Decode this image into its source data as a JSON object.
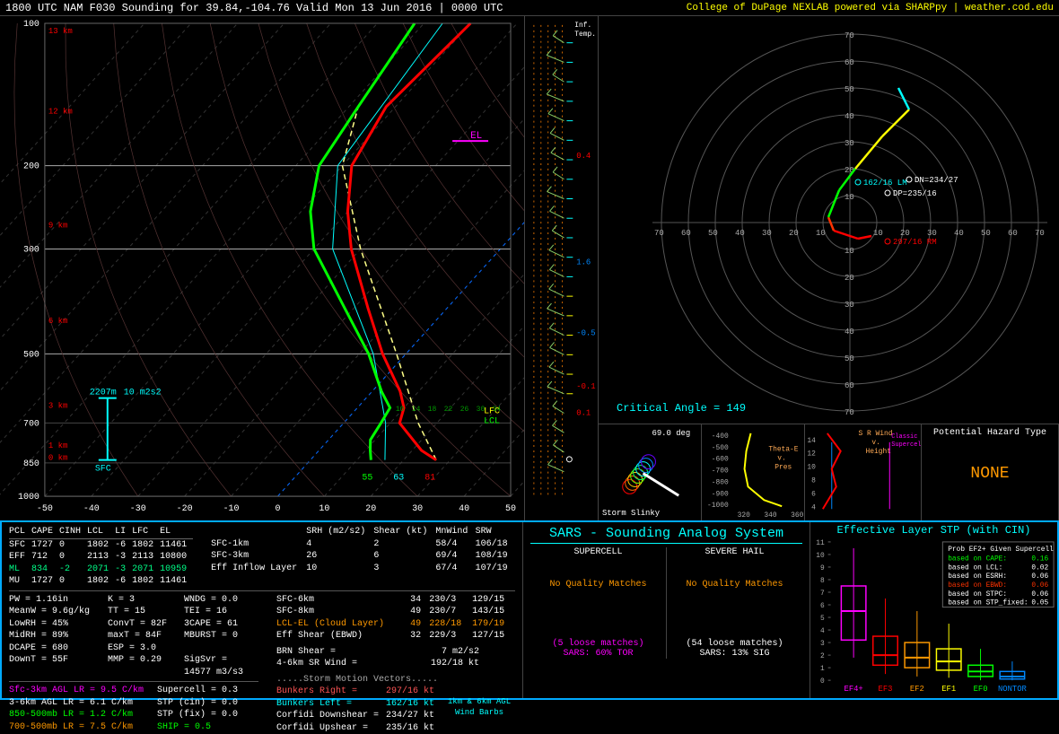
{
  "title": "1800 UTC NAM F030 Sounding for 39.84,-104.76 Valid  Mon 13 Jun 2016 | 0000 UTC",
  "credit": "College of DuPage NEXLAB powered via SHARPpy | weather.cod.edu",
  "skewt": {
    "pressure_ticks": [
      100,
      200,
      300,
      500,
      700,
      850,
      1000
    ],
    "temp_ticks": [
      -50,
      -40,
      -30,
      -20,
      -10,
      0,
      10,
      20,
      30,
      40,
      50
    ],
    "height_labels": [
      {
        "km": "13 km",
        "p": 105,
        "color": "#ff0000"
      },
      {
        "km": "12 km",
        "p": 155,
        "color": "#ff0000"
      },
      {
        "km": "9 km",
        "p": 270,
        "color": "#ff0000"
      },
      {
        "km": "6 km",
        "p": 430,
        "color": "#ff0000"
      },
      {
        "km": "3 km",
        "p": 650,
        "color": "#ff0000"
      },
      {
        "km": "1 km",
        "p": 790,
        "color": "#ff0000"
      },
      {
        "km": "0 km",
        "p": 838,
        "color": "#ff0000"
      }
    ],
    "sfc_label": "SFC",
    "eff_top": "2207m",
    "eff_sh": "10 m2s2",
    "el_label": "EL",
    "lfc_label": "LFC",
    "lcl_label": "LCL",
    "lcl_fl_label": "LCL-FL (Cloud Layer)",
    "temp_profile": [
      {
        "p": 838,
        "t": 27
      },
      {
        "p": 800,
        "t": 22
      },
      {
        "p": 700,
        "t": 12
      },
      {
        "p": 650,
        "t": 10
      },
      {
        "p": 600,
        "t": 6
      },
      {
        "p": 500,
        "t": -5
      },
      {
        "p": 400,
        "t": -17
      },
      {
        "p": 300,
        "t": -32
      },
      {
        "p": 250,
        "t": -40
      },
      {
        "p": 200,
        "t": -48
      },
      {
        "p": 150,
        "t": -52
      },
      {
        "p": 100,
        "t": -50
      }
    ],
    "dew_profile": [
      {
        "p": 838,
        "t": 13
      },
      {
        "p": 800,
        "t": 11
      },
      {
        "p": 760,
        "t": 9
      },
      {
        "p": 700,
        "t": 8
      },
      {
        "p": 650,
        "t": 7
      },
      {
        "p": 600,
        "t": 2
      },
      {
        "p": 500,
        "t": -8
      },
      {
        "p": 400,
        "t": -22
      },
      {
        "p": 300,
        "t": -40
      },
      {
        "p": 250,
        "t": -48
      },
      {
        "p": 200,
        "t": -55
      },
      {
        "p": 150,
        "t": -58
      },
      {
        "p": 100,
        "t": -62
      }
    ],
    "wetbulb_profile": [
      {
        "p": 838,
        "t": 16
      },
      {
        "p": 700,
        "t": 9
      },
      {
        "p": 500,
        "t": -7
      },
      {
        "p": 300,
        "t": -36
      },
      {
        "p": 200,
        "t": -51
      },
      {
        "p": 100,
        "t": -56
      }
    ],
    "parcel_profile": [
      {
        "p": 838,
        "t": 27
      },
      {
        "p": 700,
        "t": 16
      },
      {
        "p": 500,
        "t": -2
      },
      {
        "p": 300,
        "t": -30
      },
      {
        "p": 200,
        "t": -50
      },
      {
        "p": 150,
        "t": -58
      }
    ],
    "sfc_markers": [
      {
        "v": "55",
        "c": "#0f0"
      },
      {
        "v": "63",
        "c": "#0ff"
      },
      {
        "v": "81",
        "c": "#f00"
      }
    ],
    "inflow_markers": [
      "10",
      "14",
      "18",
      "22",
      "26",
      "30",
      "34"
    ]
  },
  "wind_panel": {
    "inf_temp_label": "Inf.\nTemp."
  },
  "hodograph": {
    "rings_kt": [
      10,
      20,
      30,
      40,
      50,
      60,
      70
    ],
    "line": [
      {
        "u": 8,
        "v": -5,
        "c": "#ff0000"
      },
      {
        "u": 3,
        "v": -6,
        "c": "#ff0000"
      },
      {
        "u": -6,
        "v": -3,
        "c": "#ff3300"
      },
      {
        "u": -8,
        "v": 2,
        "c": "#00ff00"
      },
      {
        "u": -4,
        "v": 12,
        "c": "#00ff00"
      },
      {
        "u": 2,
        "v": 20,
        "c": "#ffff00"
      },
      {
        "u": 12,
        "v": 32,
        "c": "#ffff00"
      },
      {
        "u": 22,
        "v": 42,
        "c": "#00ffff"
      },
      {
        "u": 18,
        "v": 50,
        "c": "#00ffff"
      }
    ],
    "markers": {
      "lm": {
        "txt": "162/16 LM",
        "u": 3,
        "v": 15,
        "c": "#00ffff"
      },
      "dn": {
        "txt": "DN=234/27",
        "u": 22,
        "v": 16,
        "c": "#ffffff"
      },
      "dp": {
        "txt": "DP=235/16",
        "u": 14,
        "v": 11,
        "c": "#ffffff"
      },
      "rm": {
        "txt": "297/16 RM",
        "u": 14,
        "v": -7,
        "c": "#ff0000"
      }
    },
    "crit_angle": "Critical Angle = 149"
  },
  "insets": {
    "slinky": {
      "label": "Storm Slinky",
      "angle": "69.0 deg"
    },
    "thetae": {
      "label": "Theta-E\nv.\nPres",
      "yticks": [
        "-400",
        "-500",
        "-600",
        "-700",
        "-800",
        "-900",
        "-1000"
      ],
      "xticks": [
        "320",
        "340",
        "360"
      ]
    },
    "srwind": {
      "label": "S R Wind\nv.\nHeight",
      "ticks": [
        "4",
        "6",
        "8",
        "10",
        "12",
        "14"
      ],
      "classic": "Classic\nSupercell"
    },
    "hazard": {
      "label": "Potential Hazard Type",
      "value": "NONE"
    }
  },
  "parcel_table": {
    "header": [
      "PCL",
      "CAPE",
      "CINH",
      "LCL",
      "LI",
      "LFC",
      "EL"
    ],
    "rows": [
      {
        "c": "#ffffff",
        "vals": [
          "SFC",
          "1727",
          "0",
          "1802",
          "-6",
          "1802",
          "11461"
        ]
      },
      {
        "c": "#ffffff",
        "vals": [
          "EFF",
          "712",
          "0",
          "2113",
          "-3",
          "2113",
          "10800"
        ]
      },
      {
        "c": "#00ff88",
        "vals": [
          "ML",
          "834",
          "-2",
          "2071",
          "-3",
          "2071",
          "10959"
        ]
      },
      {
        "c": "#ffffff",
        "vals": [
          "MU",
          "1727",
          "0",
          "1802",
          "-6",
          "1802",
          "11461"
        ]
      }
    ]
  },
  "thermo": [
    {
      "l": "PW = 1.16in",
      "c": "#fff"
    },
    {
      "l": "K = 3",
      "c": "#fff"
    },
    {
      "l": "WNDG = 0.0",
      "c": "#fff"
    },
    {
      "l": "MeanW = 9.6g/kg",
      "c": "#fff"
    },
    {
      "l": "TT = 15",
      "c": "#fff"
    },
    {
      "l": "TEI = 16",
      "c": "#fff"
    },
    {
      "l": "LowRH = 45%",
      "c": "#fff"
    },
    {
      "l": "ConvT = 82F",
      "c": "#fff"
    },
    {
      "l": "3CAPE = 61",
      "c": "#fff"
    },
    {
      "l": "MidRH = 89%",
      "c": "#fff"
    },
    {
      "l": "maxT = 84F",
      "c": "#fff"
    },
    {
      "l": "MBURST = 0",
      "c": "#fff"
    },
    {
      "l": "DCAPE = 680",
      "c": "#fff"
    },
    {
      "l": "ESP = 3.0",
      "c": "#fff"
    },
    {
      "l": "",
      "c": "#fff"
    },
    {
      "l": "DownT = 55F",
      "c": "#fff"
    },
    {
      "l": "MMP = 0.29",
      "c": "#fff"
    },
    {
      "l": "SigSvr = 14577 m3/s3",
      "c": "#fff"
    }
  ],
  "lapse": [
    {
      "l": "Sfc-3km AGL LR = 9.5 C/km",
      "c": "#f0f"
    },
    {
      "l": "Supercell = 0.3",
      "c": "#fff"
    },
    {
      "l": "3-6km AGL LR = 6.1 C/km",
      "c": "#fff"
    },
    {
      "l": "STP (cin) = 0.0",
      "c": "#fff"
    },
    {
      "l": "850-500mb LR = 1.2 C/km",
      "c": "#0f0"
    },
    {
      "l": "STP (fix) = 0.0",
      "c": "#fff"
    },
    {
      "l": "700-500mb LR = 7.5 C/km",
      "c": "#f90"
    },
    {
      "l": "SHIP = 0.5",
      "c": "#0f0"
    }
  ],
  "kinematics": {
    "header": [
      "",
      "SRH (m2/s2)",
      "Shear (kt)",
      "MnWind",
      "SRW"
    ],
    "rows": [
      [
        "SFC-1km",
        "4",
        "2",
        "58/4",
        "106/18"
      ],
      [
        "SFC-3km",
        "26",
        "6",
        "69/4",
        "108/19"
      ],
      [
        "Eff Inflow Layer",
        "10",
        "3",
        "67/4",
        "107/19"
      ],
      [
        "",
        "",
        "",
        "",
        ""
      ],
      [
        "SFC-6km",
        "",
        "34",
        "230/3",
        "129/15"
      ],
      [
        "SFC-8km",
        "",
        "49",
        "230/7",
        "143/15"
      ],
      [
        "LCL-EL (Cloud Layer)",
        "",
        "49",
        "228/18",
        "179/19"
      ],
      [
        "Eff Shear (EBWD)",
        "",
        "32",
        "229/3",
        "127/15"
      ]
    ],
    "brn": "BRN Shear =",
    "brn_v": "7 m2/s2",
    "srw46": "4-6km SR Wind =",
    "srw46_v": "192/18 kt",
    "motion_hdr": ".....Storm Motion Vectors.....",
    "bunkers_r": "Bunkers Right =",
    "bunkers_r_v": "297/16 kt",
    "bunkers_l": "Bunkers Left =",
    "bunkers_l_v": "162/16 kt",
    "corfidi_d": "Corfidi Downshear =",
    "corfidi_d_v": "234/27 kt",
    "corfidi_u": "Corfidi Upshear =",
    "corfidi_u_v": "235/16 kt",
    "barbs_lbl": "1km & 6km AGL\nWind Barbs"
  },
  "sars": {
    "title": "SARS - Sounding Analog System",
    "supercell_hdr": "SUPERCELL",
    "hail_hdr": "SEVERE HAIL",
    "sc_msg": "No Quality Matches",
    "hail_msg": "No Quality Matches",
    "sc_loose": "(5 loose matches)",
    "hail_loose": "(54 loose matches)",
    "sc_summary": "SARS: 60% TOR",
    "hail_summary": "SARS: 13% SIG"
  },
  "stp": {
    "title": "Effective Layer STP (with CIN)",
    "prob_hdr": "Prob EF2+ Given Supercell",
    "lines": [
      {
        "l": "based on CAPE:",
        "v": "0.16",
        "c": "#00ff00"
      },
      {
        "l": "based on LCL:",
        "v": "0.02",
        "c": "#ffffff"
      },
      {
        "l": "based on ESRH:",
        "v": "0.06",
        "c": "#ffffff"
      },
      {
        "l": "based on EBWD:",
        "v": "0.06",
        "c": "#ff3300"
      },
      {
        "l": "based on STPC:",
        "v": "0.06",
        "c": "#ffffff"
      },
      {
        "l": "based on STP_fixed:",
        "v": "0.05",
        "c": "#ffffff"
      }
    ],
    "yticks": [
      0,
      1,
      2,
      3,
      4,
      5,
      6,
      7,
      8,
      9,
      10,
      11
    ],
    "categories": [
      {
        "lbl": "EF4+",
        "c": "#ff00ff",
        "lo": 1.8,
        "q1": 3.2,
        "med": 5.5,
        "q3": 7.5,
        "hi": 10.5
      },
      {
        "lbl": "EF3",
        "c": "#ff0000",
        "lo": 0.5,
        "q1": 1.2,
        "med": 2.0,
        "q3": 3.5,
        "hi": 6.5
      },
      {
        "lbl": "EF2",
        "c": "#ff9900",
        "lo": 0.3,
        "q1": 1.0,
        "med": 1.8,
        "q3": 3.0,
        "hi": 5.5
      },
      {
        "lbl": "EF1",
        "c": "#ffff00",
        "lo": 0.2,
        "q1": 0.8,
        "med": 1.5,
        "q3": 2.5,
        "hi": 4.5
      },
      {
        "lbl": "EF0",
        "c": "#00ff00",
        "lo": 0.0,
        "q1": 0.3,
        "med": 0.7,
        "q3": 1.2,
        "hi": 2.5
      },
      {
        "lbl": "NONTOR",
        "c": "#0088ff",
        "lo": 0.0,
        "q1": 0.1,
        "med": 0.3,
        "q3": 0.7,
        "hi": 1.5
      }
    ]
  }
}
